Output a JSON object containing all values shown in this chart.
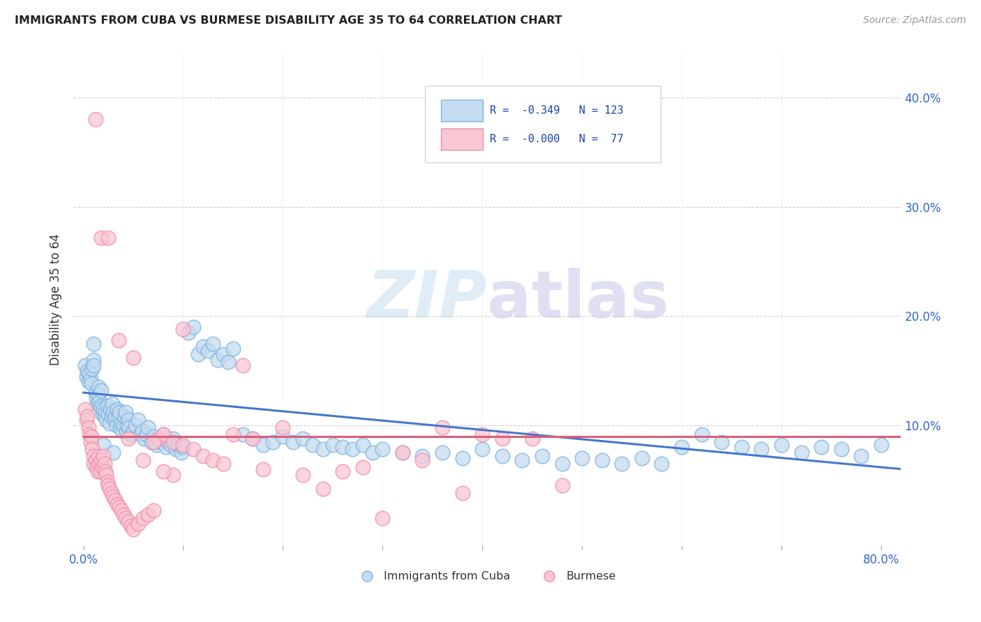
{
  "title": "IMMIGRANTS FROM CUBA VS BURMESE DISABILITY AGE 35 TO 64 CORRELATION CHART",
  "source": "Source: ZipAtlas.com",
  "ylabel": "Disability Age 35 to 64",
  "xlim": [
    -0.01,
    0.82
  ],
  "ylim": [
    -0.01,
    0.44
  ],
  "xticks": [
    0.0,
    0.1,
    0.2,
    0.3,
    0.4,
    0.5,
    0.6,
    0.7,
    0.8
  ],
  "xticklabels": [
    "0.0%",
    "",
    "",
    "",
    "",
    "",
    "",
    "",
    "80.0%"
  ],
  "yticks_right": [
    0.1,
    0.2,
    0.3,
    0.4
  ],
  "yticklabels_right": [
    "10.0%",
    "20.0%",
    "30.0%",
    "40.0%"
  ],
  "cuba_fill_color": "#c5dcf0",
  "cuba_edge_color": "#7eb3e0",
  "burmese_fill_color": "#f9c6d4",
  "burmese_edge_color": "#f08faa",
  "cuba_line_color": "#4477cc",
  "burmese_line_color": "#d9607a",
  "legend_label_cuba": "Immigrants from Cuba",
  "legend_label_burmese": "Burmese",
  "watermark_text": "ZIPatlas",
  "grid_color": "#d0d0d0",
  "cuba_trend_x0": 0.0,
  "cuba_trend_y0": 0.13,
  "cuba_trend_x1": 0.82,
  "cuba_trend_y1": 0.06,
  "burmese_trend_x0": 0.0,
  "burmese_trend_y0": 0.09,
  "burmese_trend_x1": 0.82,
  "burmese_trend_y1": 0.09,
  "cuba_x": [
    0.002,
    0.003,
    0.004,
    0.005,
    0.006,
    0.007,
    0.008,
    0.009,
    0.01,
    0.01,
    0.012,
    0.013,
    0.014,
    0.015,
    0.015,
    0.016,
    0.017,
    0.018,
    0.018,
    0.019,
    0.02,
    0.021,
    0.022,
    0.023,
    0.024,
    0.025,
    0.026,
    0.027,
    0.028,
    0.029,
    0.03,
    0.031,
    0.032,
    0.033,
    0.034,
    0.035,
    0.036,
    0.037,
    0.038,
    0.039,
    0.04,
    0.041,
    0.042,
    0.043,
    0.044,
    0.045,
    0.046,
    0.048,
    0.05,
    0.052,
    0.055,
    0.057,
    0.059,
    0.061,
    0.063,
    0.065,
    0.068,
    0.07,
    0.073,
    0.075,
    0.078,
    0.08,
    0.083,
    0.085,
    0.088,
    0.09,
    0.093,
    0.095,
    0.098,
    0.1,
    0.105,
    0.11,
    0.115,
    0.12,
    0.125,
    0.13,
    0.135,
    0.14,
    0.145,
    0.15,
    0.16,
    0.17,
    0.18,
    0.19,
    0.2,
    0.21,
    0.22,
    0.23,
    0.24,
    0.25,
    0.26,
    0.27,
    0.28,
    0.29,
    0.3,
    0.32,
    0.34,
    0.36,
    0.38,
    0.4,
    0.42,
    0.44,
    0.46,
    0.48,
    0.5,
    0.52,
    0.54,
    0.56,
    0.58,
    0.6,
    0.62,
    0.64,
    0.66,
    0.68,
    0.7,
    0.72,
    0.74,
    0.76,
    0.78,
    0.8,
    0.01,
    0.02,
    0.03
  ],
  "cuba_y": [
    0.155,
    0.145,
    0.15,
    0.14,
    0.148,
    0.142,
    0.138,
    0.152,
    0.16,
    0.155,
    0.13,
    0.125,
    0.12,
    0.135,
    0.128,
    0.122,
    0.118,
    0.132,
    0.116,
    0.11,
    0.115,
    0.108,
    0.112,
    0.105,
    0.118,
    0.11,
    0.102,
    0.115,
    0.108,
    0.12,
    0.112,
    0.105,
    0.108,
    0.1,
    0.115,
    0.108,
    0.112,
    0.098,
    0.102,
    0.095,
    0.1,
    0.108,
    0.112,
    0.095,
    0.1,
    0.105,
    0.098,
    0.092,
    0.095,
    0.1,
    0.105,
    0.092,
    0.095,
    0.088,
    0.092,
    0.098,
    0.085,
    0.09,
    0.082,
    0.088,
    0.085,
    0.092,
    0.08,
    0.085,
    0.082,
    0.088,
    0.078,
    0.082,
    0.075,
    0.08,
    0.185,
    0.19,
    0.165,
    0.172,
    0.168,
    0.175,
    0.16,
    0.165,
    0.158,
    0.17,
    0.092,
    0.088,
    0.082,
    0.085,
    0.09,
    0.085,
    0.088,
    0.082,
    0.078,
    0.082,
    0.08,
    0.078,
    0.082,
    0.075,
    0.078,
    0.075,
    0.072,
    0.075,
    0.07,
    0.078,
    0.072,
    0.068,
    0.072,
    0.065,
    0.07,
    0.068,
    0.065,
    0.07,
    0.065,
    0.08,
    0.092,
    0.085,
    0.08,
    0.078,
    0.082,
    0.075,
    0.08,
    0.078,
    0.072,
    0.082,
    0.175,
    0.082,
    0.075
  ],
  "burmese_x": [
    0.002,
    0.003,
    0.004,
    0.005,
    0.006,
    0.007,
    0.008,
    0.009,
    0.01,
    0.01,
    0.012,
    0.013,
    0.014,
    0.015,
    0.016,
    0.017,
    0.018,
    0.019,
    0.02,
    0.021,
    0.022,
    0.023,
    0.024,
    0.025,
    0.026,
    0.028,
    0.03,
    0.032,
    0.034,
    0.036,
    0.038,
    0.04,
    0.042,
    0.045,
    0.048,
    0.05,
    0.055,
    0.06,
    0.065,
    0.07,
    0.075,
    0.08,
    0.09,
    0.1,
    0.11,
    0.12,
    0.13,
    0.14,
    0.15,
    0.17,
    0.18,
    0.2,
    0.22,
    0.24,
    0.26,
    0.28,
    0.3,
    0.32,
    0.34,
    0.36,
    0.38,
    0.4,
    0.42,
    0.45,
    0.48,
    0.1,
    0.16,
    0.05,
    0.07,
    0.09,
    0.012,
    0.018,
    0.025,
    0.035,
    0.045,
    0.06,
    0.08
  ],
  "burmese_y": [
    0.115,
    0.105,
    0.108,
    0.098,
    0.092,
    0.085,
    0.09,
    0.078,
    0.072,
    0.065,
    0.068,
    0.062,
    0.058,
    0.072,
    0.065,
    0.058,
    0.068,
    0.062,
    0.072,
    0.065,
    0.058,
    0.055,
    0.048,
    0.045,
    0.042,
    0.038,
    0.035,
    0.032,
    0.028,
    0.025,
    0.022,
    0.018,
    0.015,
    0.012,
    0.008,
    0.005,
    0.01,
    0.015,
    0.018,
    0.022,
    0.088,
    0.092,
    0.085,
    0.082,
    0.078,
    0.072,
    0.068,
    0.065,
    0.092,
    0.088,
    0.06,
    0.098,
    0.055,
    0.042,
    0.058,
    0.062,
    0.015,
    0.075,
    0.068,
    0.098,
    0.038,
    0.092,
    0.088,
    0.088,
    0.045,
    0.188,
    0.155,
    0.162,
    0.085,
    0.055,
    0.38,
    0.272,
    0.272,
    0.178,
    0.088,
    0.068,
    0.058
  ]
}
